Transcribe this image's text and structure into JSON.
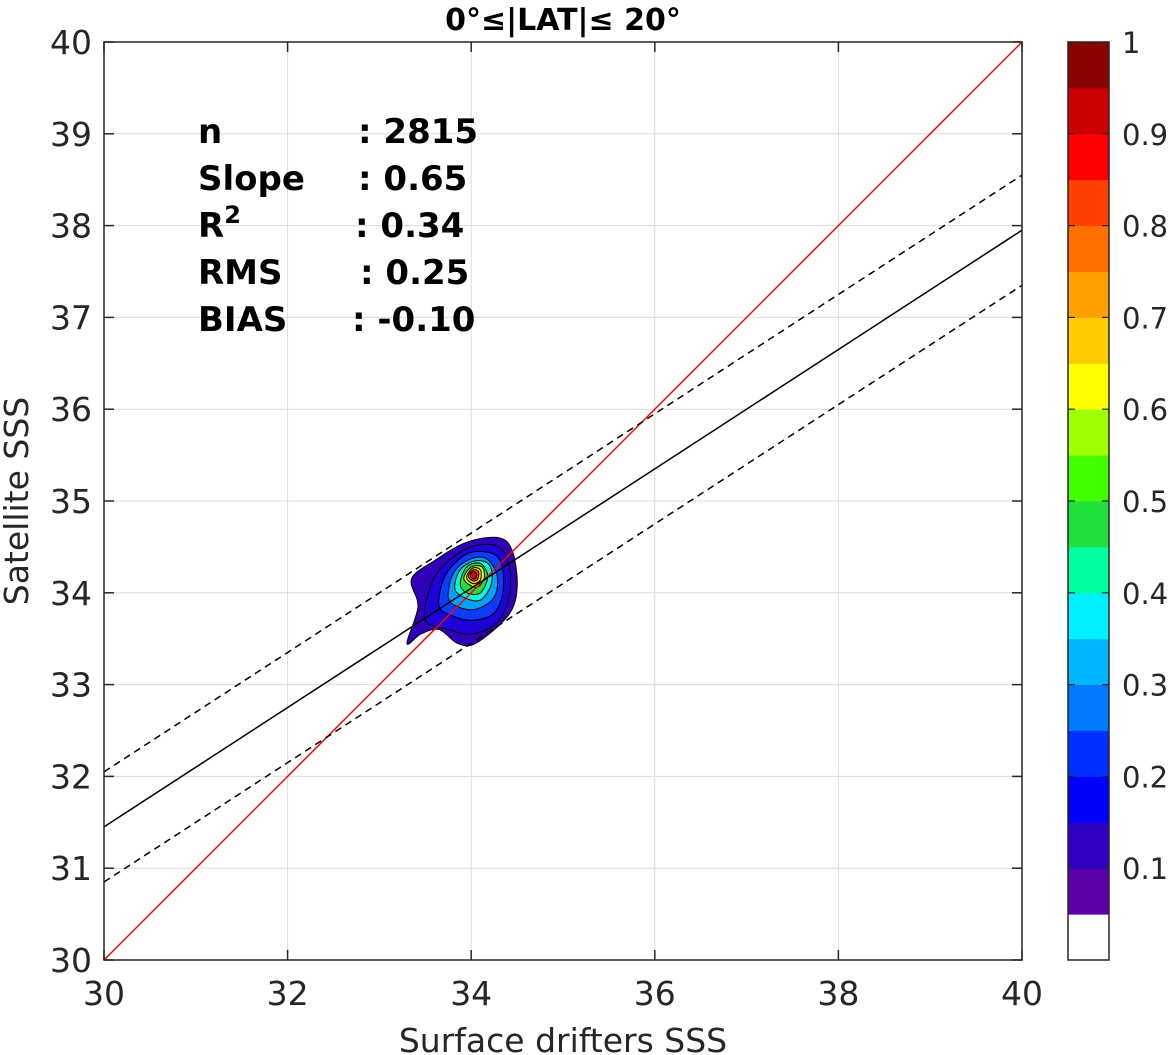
{
  "chart_data": {
    "type": "scatter",
    "title": "0°≤|LAT|≤ 20°",
    "xlabel": "Surface drifters SSS",
    "ylabel": "Satellite SSS",
    "xlim": [
      30,
      40
    ],
    "ylim": [
      30,
      40
    ],
    "x_ticks": [
      "30",
      "32",
      "34",
      "36",
      "38",
      "40"
    ],
    "y_ticks": [
      "30",
      "31",
      "32",
      "33",
      "34",
      "35",
      "36",
      "37",
      "38",
      "39",
      "40"
    ],
    "grid": true,
    "stats": [
      {
        "key": "n",
        "sep": ": ",
        "value": "2815"
      },
      {
        "key": "Slope",
        "sep": ": ",
        "value": "0.65"
      },
      {
        "key": "R",
        "sup": "2",
        "sep": ": ",
        "value": "0.34"
      },
      {
        "key": "RMS",
        "sep": ": ",
        "value": "0.25"
      },
      {
        "key": "BIAS",
        "sep": ": ",
        "value": "-0.10"
      }
    ],
    "lines": [
      {
        "name": "identity",
        "style": "solid",
        "color": "#ff0000",
        "slope": 1.0,
        "intercept": 0.0
      },
      {
        "name": "regression",
        "style": "solid",
        "color": "#000000",
        "slope": 0.65,
        "intercept": 11.95
      },
      {
        "name": "upper-bound",
        "style": "dashed",
        "color": "#000000",
        "slope": 0.65,
        "intercept": 12.55
      },
      {
        "name": "lower-bound",
        "style": "dashed",
        "color": "#000000",
        "slope": 0.65,
        "intercept": 11.35
      }
    ],
    "density": {
      "center": [
        34.02,
        34.2
      ],
      "levels": [
        {
          "level": 0.05,
          "color": "#3000b8",
          "points": [
            [
              33.3,
              33.45
            ],
            [
              33.42,
              33.85
            ],
            [
              33.35,
              34.15
            ],
            [
              33.6,
              34.35
            ],
            [
              33.95,
              34.55
            ],
            [
              34.3,
              34.6
            ],
            [
              34.45,
              34.45
            ],
            [
              34.5,
              34.05
            ],
            [
              34.4,
              33.75
            ],
            [
              34.05,
              33.45
            ],
            [
              33.85,
              33.45
            ],
            [
              33.65,
              33.6
            ],
            [
              33.45,
              33.55
            ]
          ]
        },
        {
          "level": 0.1,
          "color": "#1e00d8",
          "points": [
            [
              33.5,
              33.7
            ],
            [
              33.55,
              34.05
            ],
            [
              33.7,
              34.3
            ],
            [
              34.0,
              34.5
            ],
            [
              34.3,
              34.5
            ],
            [
              34.42,
              34.25
            ],
            [
              34.4,
              33.9
            ],
            [
              34.25,
              33.65
            ],
            [
              34.0,
              33.55
            ],
            [
              33.75,
              33.6
            ]
          ]
        },
        {
          "level": 0.2,
          "color": "#0c3cff",
          "points": [
            [
              33.65,
              33.85
            ],
            [
              33.7,
              34.15
            ],
            [
              33.85,
              34.35
            ],
            [
              34.05,
              34.45
            ],
            [
              34.3,
              34.38
            ],
            [
              34.35,
              34.05
            ],
            [
              34.25,
              33.78
            ],
            [
              34.0,
              33.7
            ],
            [
              33.8,
              33.75
            ]
          ]
        },
        {
          "level": 0.3,
          "color": "#00a0ff",
          "points": [
            [
              33.75,
              33.95
            ],
            [
              33.8,
              34.2
            ],
            [
              33.95,
              34.35
            ],
            [
              34.15,
              34.38
            ],
            [
              34.28,
              34.2
            ],
            [
              34.25,
              33.95
            ],
            [
              34.05,
              33.82
            ],
            [
              33.85,
              33.85
            ]
          ]
        },
        {
          "level": 0.4,
          "color": "#00ffd0",
          "points": [
            [
              33.82,
              34.05
            ],
            [
              33.88,
              34.25
            ],
            [
              34.05,
              34.35
            ],
            [
              34.2,
              34.3
            ],
            [
              34.22,
              34.1
            ],
            [
              34.1,
              33.92
            ],
            [
              33.92,
              33.95
            ]
          ]
        },
        {
          "level": 0.5,
          "color": "#20e040",
          "points": [
            [
              33.88,
              34.1
            ],
            [
              33.95,
              34.28
            ],
            [
              34.1,
              34.32
            ],
            [
              34.18,
              34.18
            ],
            [
              34.1,
              34.0
            ],
            [
              33.95,
              34.0
            ]
          ]
        },
        {
          "level": 0.6,
          "color": "#d0ff00",
          "points": [
            [
              33.92,
              34.15
            ],
            [
              34.0,
              34.28
            ],
            [
              34.12,
              34.28
            ],
            [
              34.14,
              34.15
            ],
            [
              34.05,
              34.06
            ]
          ]
        },
        {
          "level": 0.7,
          "color": "#ffc000",
          "points": [
            [
              33.95,
              34.17
            ],
            [
              34.02,
              34.27
            ],
            [
              34.1,
              34.25
            ],
            [
              34.1,
              34.14
            ],
            [
              34.02,
              34.1
            ]
          ]
        },
        {
          "level": 0.8,
          "color": "#ff5000",
          "points": [
            [
              33.97,
              34.18
            ],
            [
              34.02,
              34.25
            ],
            [
              34.08,
              34.23
            ],
            [
              34.07,
              34.15
            ],
            [
              34.02,
              34.13
            ]
          ]
        },
        {
          "level": 0.9,
          "color": "#e80000",
          "points": [
            [
              33.99,
              34.19
            ],
            [
              34.02,
              34.23
            ],
            [
              34.06,
              34.21
            ],
            [
              34.05,
              34.16
            ],
            [
              34.02,
              34.15
            ]
          ]
        }
      ]
    },
    "colorbar": {
      "ticks": [
        "0.1",
        "0.2",
        "0.3",
        "0.4",
        "0.5",
        "0.6",
        "0.7",
        "0.8",
        "0.9",
        "1"
      ],
      "colors": [
        "#ffffff",
        "#5a00a8",
        "#3000c8",
        "#0000ff",
        "#0030ff",
        "#0078ff",
        "#00b4ff",
        "#00f0ff",
        "#00ffa0",
        "#20e040",
        "#40ff00",
        "#a0ff00",
        "#ffff00",
        "#ffcc00",
        "#ffa000",
        "#ff7000",
        "#ff4000",
        "#ff0000",
        "#cc0000",
        "#8b0000"
      ]
    }
  }
}
